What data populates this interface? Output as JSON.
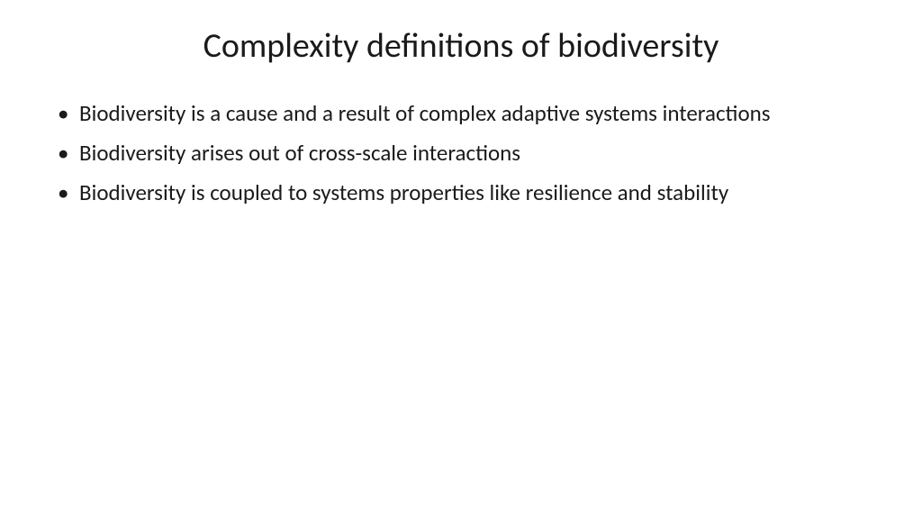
{
  "slide": {
    "title": "Complexity definitions of biodiversity",
    "bullets": [
      "Biodiversity is a cause and a result of complex adaptive systems interactions",
      "Biodiversity arises out of cross-scale interactions",
      "Biodiversity is coupled to systems properties like resilience and stability"
    ]
  },
  "styling": {
    "background_color": "#ffffff",
    "text_color": "#1a1a1a",
    "title_fontsize": 38,
    "body_fontsize": 25,
    "font_family": "Calibri"
  }
}
